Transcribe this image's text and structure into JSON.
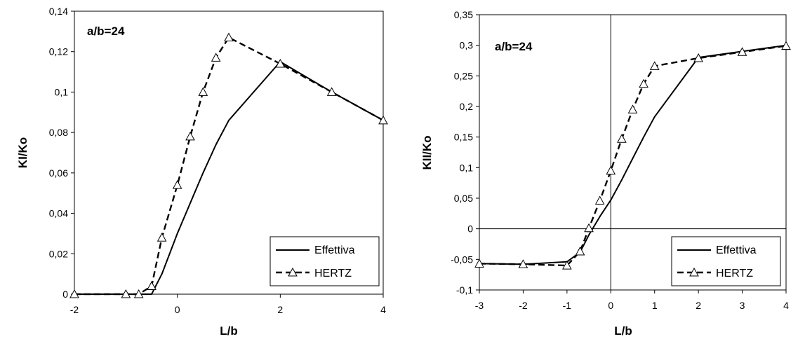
{
  "chart_data": [
    {
      "type": "line",
      "annotation": "a/b=24",
      "xlabel": "L/b",
      "ylabel": "KI/Ko",
      "xlim": [
        -2,
        4
      ],
      "ylim": [
        0,
        0.14
      ],
      "xticks": [
        "-2",
        "0",
        "2",
        "4"
      ],
      "yticks": [
        "0",
        "0,02",
        "0,04",
        "0,06",
        "0,08",
        "0,1",
        "0,12",
        "0,14"
      ],
      "legend_position": "bottom-right",
      "grid": false,
      "series": [
        {
          "name": "Effettiva",
          "style": "solid",
          "color": "#000000",
          "x": [
            -2,
            -1,
            -0.75,
            -0.5,
            -0.3,
            0,
            0.25,
            0.5,
            0.75,
            1,
            2,
            3,
            4
          ],
          "y": [
            0,
            0,
            0,
            0,
            0.01,
            0.03,
            0.045,
            0.06,
            0.074,
            0.086,
            0.115,
            0.1,
            0.086
          ]
        },
        {
          "name": "HERTZ",
          "style": "dashed",
          "marker": "triangle",
          "color": "#000000",
          "x": [
            -2,
            -1,
            -0.75,
            -0.5,
            -0.3,
            0,
            0.25,
            0.5,
            0.75,
            1,
            2,
            3,
            4
          ],
          "y": [
            0,
            0,
            0,
            0.004,
            0.028,
            0.054,
            0.078,
            0.1,
            0.117,
            0.127,
            0.114,
            0.1,
            0.086
          ]
        }
      ]
    },
    {
      "type": "line",
      "annotation": "a/b=24",
      "xlabel": "L/b",
      "ylabel": "KII/Ko",
      "xlim": [
        -3,
        4
      ],
      "ylim": [
        -0.1,
        0.35
      ],
      "xticks": [
        "-3",
        "-2",
        "-1",
        "0",
        "1",
        "2",
        "3",
        "4"
      ],
      "yticks": [
        "-0,1",
        "-0,05",
        "0",
        "0,05",
        "0,1",
        "0,15",
        "0,2",
        "0,25",
        "0,3",
        "0,35"
      ],
      "legend_position": "bottom-right",
      "grid": false,
      "zero_axes": true,
      "series": [
        {
          "name": "Effettiva",
          "style": "solid",
          "color": "#000000",
          "x": [
            -3,
            -2,
            -1,
            -0.7,
            -0.5,
            -0.25,
            0,
            0.25,
            0.5,
            0.75,
            1,
            2,
            3,
            4
          ],
          "y": [
            -0.057,
            -0.058,
            -0.054,
            -0.038,
            -0.01,
            0.02,
            0.047,
            0.08,
            0.115,
            0.15,
            0.183,
            0.28,
            0.29,
            0.3
          ]
        },
        {
          "name": "HERTZ",
          "style": "dashed",
          "marker": "triangle",
          "color": "#000000",
          "x": [
            -3,
            -2,
            -1,
            -0.7,
            -0.5,
            -0.25,
            0,
            0.25,
            0.5,
            0.75,
            1,
            2,
            3,
            4
          ],
          "y": [
            -0.057,
            -0.058,
            -0.06,
            -0.037,
            0.001,
            0.046,
            0.095,
            0.147,
            0.195,
            0.237,
            0.266,
            0.279,
            0.289,
            0.299
          ]
        }
      ]
    }
  ]
}
